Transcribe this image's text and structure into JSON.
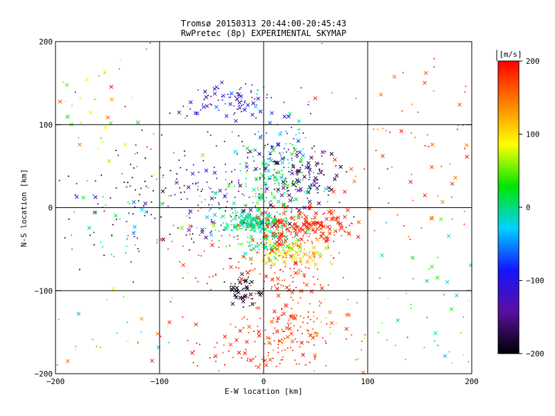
{
  "chart_data": {
    "type": "scatter",
    "title": "Tromsø 20150313 20:44:00-20:45:43",
    "subtitle": "RwPretec (8p) EXPERIMENTAL SKYMAP",
    "xlabel": "E-W location [km]",
    "ylabel": "N-S location [km]",
    "xlim": [
      -200,
      200
    ],
    "ylim": [
      -200,
      200
    ],
    "xticks": [
      -200,
      -100,
      0,
      100,
      200
    ],
    "yticks": [
      -200,
      -100,
      0,
      100,
      200
    ],
    "xtick_labels": [
      "−200",
      "−100",
      "0",
      "100",
      "200"
    ],
    "ytick_labels": [
      "−200",
      "−100",
      "0",
      "100",
      "200"
    ],
    "grid": true,
    "marker_types": [
      "small dot",
      "x"
    ],
    "colorbar": {
      "label": "[m/s]",
      "range": [
        -200,
        200
      ],
      "ticks": [
        200,
        100,
        0,
        -100,
        -200
      ],
      "tick_labels": [
        "200",
        "100",
        "0",
        "−100",
        "−200"
      ],
      "colormap": [
        "#000000",
        "#5a0fa0",
        "#1414ff",
        "#00d2ff",
        "#00e600",
        "#ffff00",
        "#ff8000",
        "#ff0000"
      ]
    },
    "clusters": [
      {
        "x": -10,
        "y": -18,
        "sx": 12,
        "sy": 6,
        "n": 160,
        "v": [
          -20,
          20
        ],
        "xfrac": 0.3
      },
      {
        "x": 5,
        "y": -40,
        "sx": 15,
        "sy": 10,
        "n": 100,
        "v": [
          -20,
          40
        ],
        "xfrac": 0.3
      },
      {
        "x": 30,
        "y": -55,
        "sx": 18,
        "sy": 8,
        "n": 110,
        "v": [
          60,
          140
        ],
        "xfrac": 0.3
      },
      {
        "x": 55,
        "y": -25,
        "sx": 18,
        "sy": 10,
        "n": 120,
        "v": [
          160,
          200
        ],
        "xfrac": 0.5
      },
      {
        "x": 20,
        "y": -20,
        "sx": 12,
        "sy": 10,
        "n": 70,
        "v": [
          170,
          200
        ],
        "xfrac": 0.4
      },
      {
        "x": 25,
        "y": -105,
        "sx": 20,
        "sy": 50,
        "n": 160,
        "v": [
          160,
          200
        ],
        "xfrac": 0.3
      },
      {
        "x": -25,
        "y": -60,
        "sx": 35,
        "sy": 30,
        "n": 90,
        "v": [
          160,
          200
        ],
        "xfrac": 0.2
      },
      {
        "x": -20,
        "y": -100,
        "sx": 10,
        "sy": 8,
        "n": 40,
        "v": [
          -200,
          -180
        ],
        "xfrac": 0.7
      },
      {
        "x": 30,
        "y": 40,
        "sx": 25,
        "sy": 20,
        "n": 140,
        "v": [
          -200,
          -120
        ],
        "xfrac": 0.3
      },
      {
        "x": -40,
        "y": 20,
        "sx": 30,
        "sy": 25,
        "n": 90,
        "v": [
          -180,
          -90
        ],
        "xfrac": 0.2
      },
      {
        "x": -20,
        "y": 0,
        "sx": 30,
        "sy": 20,
        "n": 90,
        "v": [
          -40,
          60
        ],
        "xfrac": 0.2
      },
      {
        "x": 10,
        "y": 25,
        "sx": 20,
        "sy": 30,
        "n": 120,
        "v": [
          -20,
          40
        ],
        "xfrac": 0.2
      },
      {
        "x": -30,
        "y": 130,
        "sx": 20,
        "sy": 12,
        "n": 80,
        "v": [
          -160,
          -50
        ],
        "xfrac": 0.4
      },
      {
        "x": 10,
        "y": 80,
        "sx": 25,
        "sy": 25,
        "n": 70,
        "v": [
          -120,
          20
        ],
        "xfrac": 0.3
      },
      {
        "x": -110,
        "y": 20,
        "sx": 45,
        "sy": 40,
        "n": 110,
        "v": [
          -200,
          -140
        ],
        "xfrac": 0.1
      },
      {
        "x": -150,
        "y": -20,
        "sx": 30,
        "sy": 40,
        "n": 40,
        "v": [
          -80,
          20
        ],
        "xfrac": 0.3
      },
      {
        "x": 0,
        "y": -170,
        "sx": 40,
        "sy": 20,
        "n": 110,
        "v": [
          160,
          200
        ],
        "xfrac": 0.2
      },
      {
        "x": 60,
        "y": -150,
        "sx": 30,
        "sy": 30,
        "n": 50,
        "v": [
          100,
          200
        ],
        "xfrac": 0.2
      },
      {
        "x": 140,
        "y": 60,
        "sx": 40,
        "sy": 60,
        "n": 80,
        "v": [
          140,
          200
        ],
        "xfrac": 0.3
      },
      {
        "x": 150,
        "y": -120,
        "sx": 35,
        "sy": 50,
        "n": 50,
        "v": [
          -60,
          80
        ],
        "xfrac": 0.3
      },
      {
        "x": -150,
        "y": 120,
        "sx": 40,
        "sy": 40,
        "n": 50,
        "v": [
          -20,
          200
        ],
        "xfrac": 0.4
      },
      {
        "x": -150,
        "y": -150,
        "sx": 40,
        "sy": 30,
        "n": 30,
        "v": [
          -40,
          160
        ],
        "xfrac": 0.3
      }
    ]
  }
}
